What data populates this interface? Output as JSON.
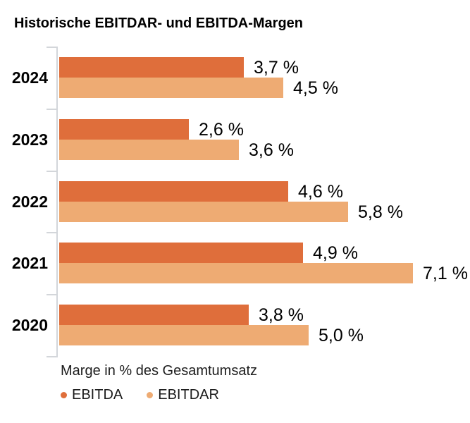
{
  "chart_data": {
    "type": "bar",
    "orientation": "horizontal",
    "title": "Historische EBITDAR- und EBITDA-Margen",
    "xlabel": "Marge in % des Gesamtumsatz",
    "categories": [
      "2024",
      "2023",
      "2022",
      "2021",
      "2020"
    ],
    "series": [
      {
        "name": "EBITDA",
        "color": "#df6e3b",
        "values": [
          3.7,
          2.6,
          4.6,
          4.9,
          3.8
        ],
        "labels": [
          "3,7 %",
          "2,6 %",
          "4,6 %",
          "4,9 %",
          "3,8 %"
        ]
      },
      {
        "name": "EBITDAR",
        "color": "#eeab73",
        "values": [
          4.5,
          3.6,
          5.8,
          7.1,
          5.0
        ],
        "labels": [
          "4,5 %",
          "3,6 %",
          "5,8 %",
          "7,1 %",
          "5,0 %"
        ]
      }
    ],
    "xlim": [
      0,
      7.9
    ],
    "grid": false,
    "legend": {
      "position": "bottom",
      "entries": [
        {
          "label": "EBITDA",
          "color": "#df6e3b"
        },
        {
          "label": "EBITDAR",
          "color": "#eeab73"
        }
      ]
    },
    "axis_color": "#d3d6da"
  }
}
